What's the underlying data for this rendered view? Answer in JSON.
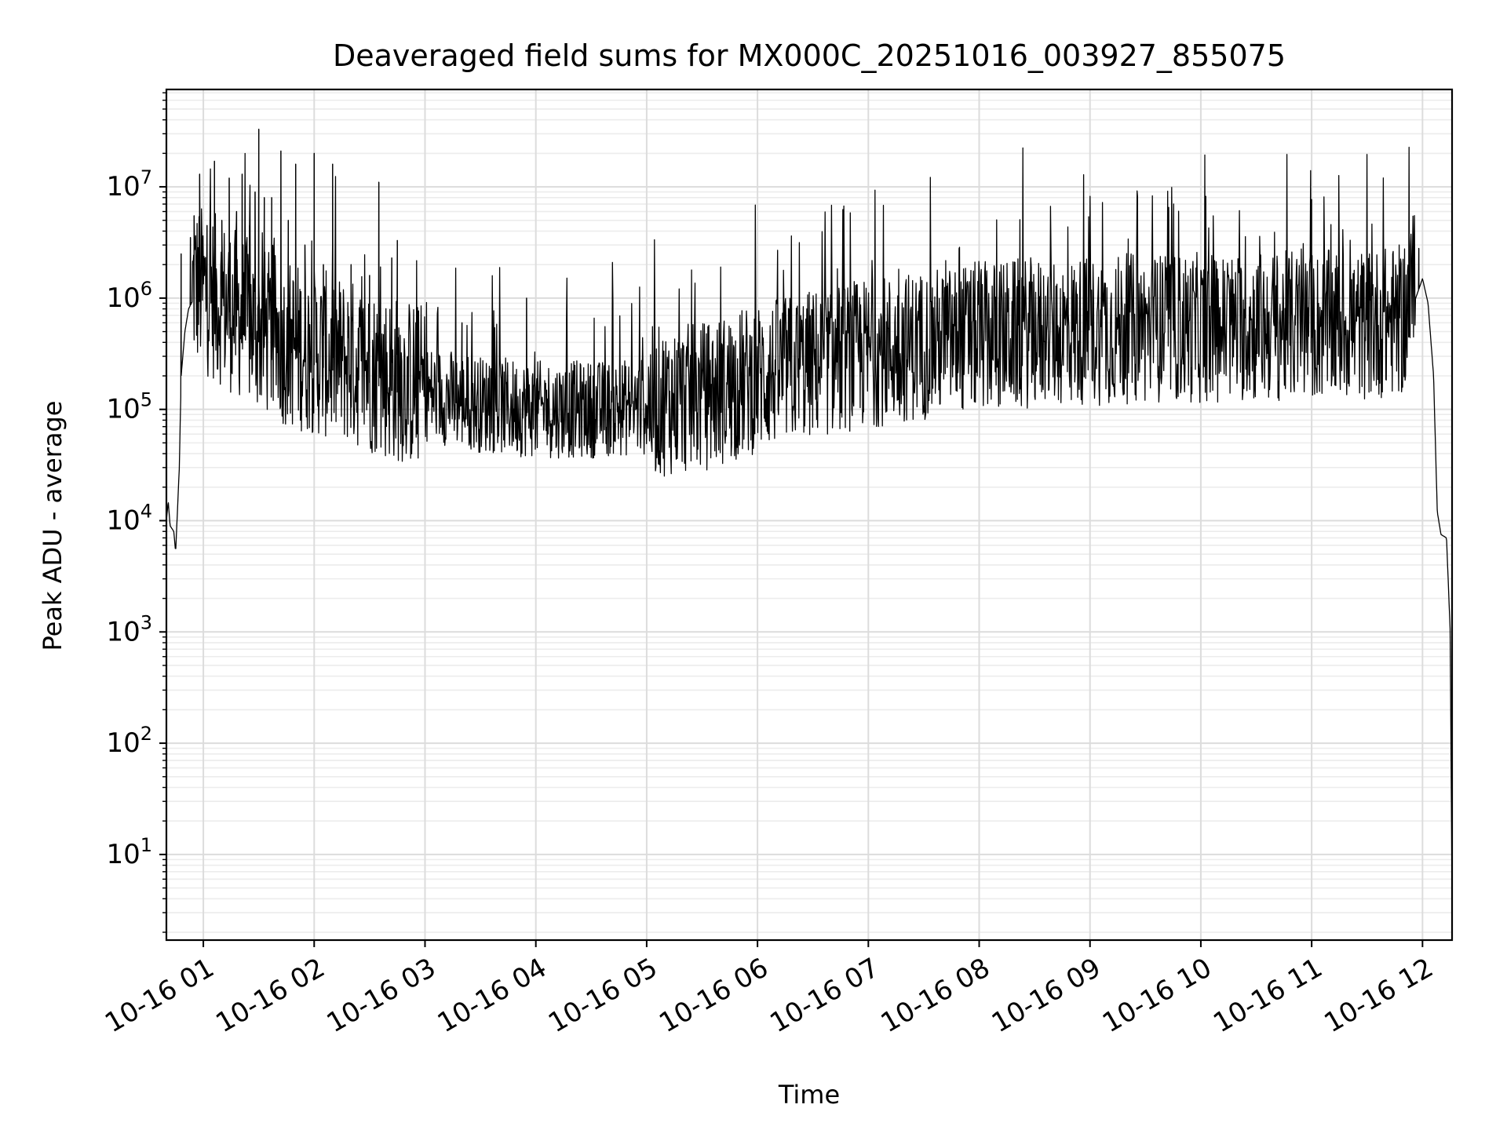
{
  "chart_data": {
    "type": "line",
    "title": "Deaveraged field sums for MX000C_20251016_003927_855075",
    "xlabel": "Time",
    "ylabel": "Peak ADU - average",
    "yscale": "log",
    "xlim": [
      "2025-10-16 00:40",
      "2025-10-16 12:16"
    ],
    "ylim": [
      1.7,
      75000000
    ],
    "grid": "major and minor, light gray",
    "x_ticks": [
      "10-16 01",
      "10-16 02",
      "10-16 03",
      "10-16 04",
      "10-16 05",
      "10-16 06",
      "10-16 07",
      "10-16 08",
      "10-16 09",
      "10-16 10",
      "10-16 11",
      "10-16 12"
    ],
    "x_tick_times": [
      "2025-10-16 01:00",
      "2025-10-16 02:00",
      "2025-10-16 03:00",
      "2025-10-16 04:00",
      "2025-10-16 05:00",
      "2025-10-16 06:00",
      "2025-10-16 07:00",
      "2025-10-16 08:00",
      "2025-10-16 09:00",
      "2025-10-16 10:00",
      "2025-10-16 11:00",
      "2025-10-16 12:00"
    ],
    "y_ticks": [
      {
        "value": 10,
        "base": "10",
        "exp": "1"
      },
      {
        "value": 100,
        "base": "10",
        "exp": "2"
      },
      {
        "value": 1000,
        "base": "10",
        "exp": "3"
      },
      {
        "value": 10000,
        "base": "10",
        "exp": "4"
      },
      {
        "value": 100000,
        "base": "10",
        "exp": "5"
      },
      {
        "value": 1000000,
        "base": "10",
        "exp": "6"
      },
      {
        "value": 10000000,
        "base": "10",
        "exp": "7"
      }
    ],
    "series": [
      {
        "color": "#000000",
        "x": [
          "2025-10-16 00:40",
          "2025-10-16 00:41",
          "2025-10-16 00:42",
          "2025-10-16 00:44",
          "2025-10-16 00:45",
          "2025-10-16 00:47",
          "2025-10-16 00:48",
          "2025-10-16 00:50",
          "2025-10-16 00:52",
          "2025-10-16 00:55",
          "2025-10-16 01:05",
          "2025-10-16 01:15",
          "2025-10-16 01:30",
          "2025-10-16 01:45",
          "2025-10-16 02:00",
          "2025-10-16 02:20",
          "2025-10-16 02:40",
          "2025-10-16 03:00",
          "2025-10-16 03:30",
          "2025-10-16 04:00",
          "2025-10-16 04:30",
          "2025-10-16 05:00",
          "2025-10-16 05:30",
          "2025-10-16 06:00",
          "2025-10-16 06:30",
          "2025-10-16 07:00",
          "2025-10-16 07:30",
          "2025-10-16 08:00",
          "2025-10-16 08:30",
          "2025-10-16 09:00",
          "2025-10-16 09:30",
          "2025-10-16 10:00",
          "2025-10-16 10:30",
          "2025-10-16 11:00",
          "2025-10-16 11:30",
          "2025-10-16 11:50",
          "2025-10-16 11:58",
          "2025-10-16 12:00",
          "2025-10-16 12:03",
          "2025-10-16 12:06",
          "2025-10-16 12:08",
          "2025-10-16 12:10",
          "2025-10-16 12:13",
          "2025-10-16 12:15",
          "2025-10-16 12:16"
        ],
        "y": [
          10000,
          15000,
          9000,
          8000,
          5200,
          30000,
          200000,
          500000,
          800000,
          1000000,
          800000,
          600000,
          400000,
          300000,
          250000,
          200000,
          150000,
          120000,
          95000,
          85000,
          85000,
          90000,
          100000,
          150000,
          200000,
          250000,
          300000,
          350000,
          380000,
          400000,
          420000,
          420000,
          430000,
          440000,
          450000,
          500000,
          1200000,
          1500000,
          900000,
          200000,
          12000,
          7500,
          7000,
          1000,
          3.8
        ],
        "spikes": [
          {
            "t": "2025-10-16 00:48",
            "y": 2500000
          },
          {
            "t": "2025-10-16 00:53",
            "y": 3500000
          },
          {
            "t": "2025-10-16 00:55",
            "y": 5500000
          },
          {
            "t": "2025-10-16 00:58",
            "y": 13000000
          },
          {
            "t": "2025-10-16 01:02",
            "y": 4500000
          },
          {
            "t": "2025-10-16 01:06",
            "y": 17000000
          },
          {
            "t": "2025-10-16 01:10",
            "y": 5000000
          },
          {
            "t": "2025-10-16 01:14",
            "y": 12000000
          },
          {
            "t": "2025-10-16 01:18",
            "y": 6000000
          },
          {
            "t": "2025-10-16 01:21",
            "y": 13000000
          },
          {
            "t": "2025-10-16 01:25",
            "y": 4500000
          },
          {
            "t": "2025-10-16 01:28",
            "y": 9000000
          },
          {
            "t": "2025-10-16 01:30",
            "y": 33000000
          },
          {
            "t": "2025-10-16 01:33",
            "y": 8000000
          },
          {
            "t": "2025-10-16 01:37",
            "y": 8000000
          },
          {
            "t": "2025-10-16 01:42",
            "y": 21000000
          },
          {
            "t": "2025-10-16 01:46",
            "y": 5000000
          },
          {
            "t": "2025-10-16 01:50",
            "y": 16000000
          },
          {
            "t": "2025-10-16 01:55",
            "y": 3000000
          },
          {
            "t": "2025-10-16 02:00",
            "y": 20000000
          },
          {
            "t": "2025-10-16 02:05",
            "y": 2000000
          },
          {
            "t": "2025-10-16 02:10",
            "y": 16000000
          },
          {
            "t": "2025-10-16 02:20",
            "y": 2000000
          },
          {
            "t": "2025-10-16 02:30",
            "y": 1600000
          },
          {
            "t": "2025-10-16 02:35",
            "y": 11000000
          },
          {
            "t": "2025-10-16 02:42",
            "y": 2300000
          },
          {
            "t": "2025-10-16 02:45",
            "y": 3300000
          },
          {
            "t": "2025-10-16 02:55",
            "y": 600000
          },
          {
            "t": "2025-10-16 03:20",
            "y": 600000
          },
          {
            "t": "2025-10-16 03:55",
            "y": 1000000
          },
          {
            "t": "2025-10-16 11:00",
            "y": 2200000
          },
          {
            "t": "2025-10-16 11:58",
            "y": 2800000
          }
        ]
      }
    ]
  }
}
